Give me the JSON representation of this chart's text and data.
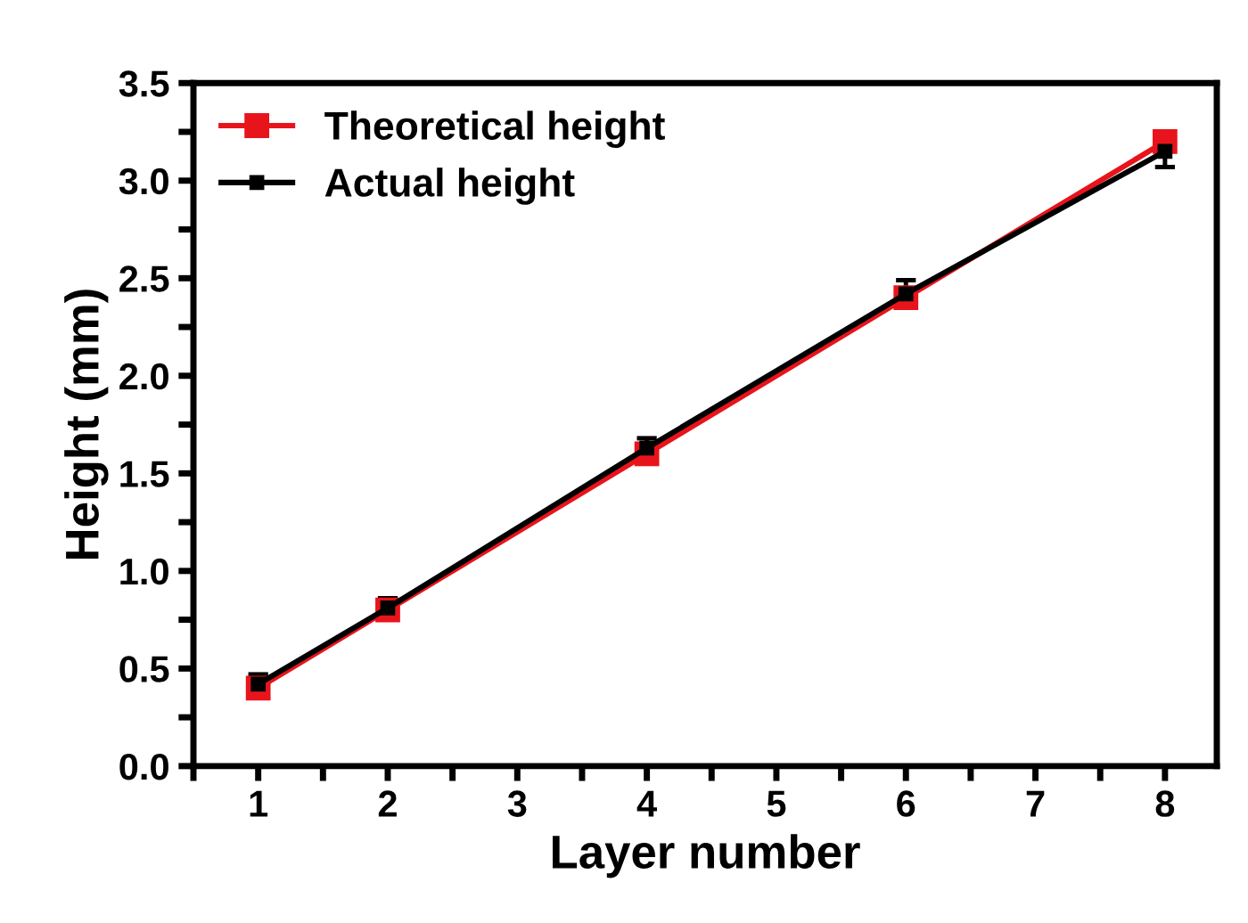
{
  "chart_data": {
    "type": "line",
    "xlabel": "Layer number",
    "ylabel": "Height (mm)",
    "x": [
      1,
      2,
      4,
      6,
      8
    ],
    "series": [
      {
        "name": "Theoretical height",
        "color": "#e8141c",
        "values": [
          0.4,
          0.8,
          1.6,
          2.4,
          3.2
        ]
      },
      {
        "name": "Actual height",
        "color": "#000000",
        "values": [
          0.42,
          0.81,
          1.63,
          2.42,
          3.15
        ],
        "errors": [
          0.05,
          0.05,
          0.05,
          0.07,
          0.08
        ]
      }
    ],
    "xlim": [
      0.5,
      8.4
    ],
    "ylim": [
      0,
      3.5
    ],
    "xticks": [
      {
        "value": 0.5,
        "label": null
      },
      1,
      {
        "value": 1.5,
        "label": null
      },
      2,
      {
        "value": 2.5,
        "label": null
      },
      3,
      {
        "value": 3.5,
        "label": null
      },
      4,
      {
        "value": 4.5,
        "label": null
      },
      5,
      {
        "value": 5.5,
        "label": null
      },
      6,
      {
        "value": 6.5,
        "label": null
      },
      7,
      {
        "value": 7.5,
        "label": null
      },
      8
    ],
    "yticks": [
      {
        "value": 0,
        "label": "0.0"
      },
      {
        "value": 0.25,
        "label": null
      },
      0.5,
      {
        "value": 0.75,
        "label": null
      },
      {
        "value": 1,
        "label": "1.0"
      },
      {
        "value": 1.25,
        "label": null
      },
      1.5,
      {
        "value": 1.75,
        "label": null
      },
      {
        "value": 2,
        "label": "2.0"
      },
      {
        "value": 2.25,
        "label": null
      },
      2.5,
      {
        "value": 2.75,
        "label": null
      },
      {
        "value": 3,
        "label": "3.0"
      },
      {
        "value": 3.25,
        "label": null
      },
      3.5
    ],
    "marker": "square",
    "line_style": "solid",
    "legend": "top left",
    "grid": false
  }
}
